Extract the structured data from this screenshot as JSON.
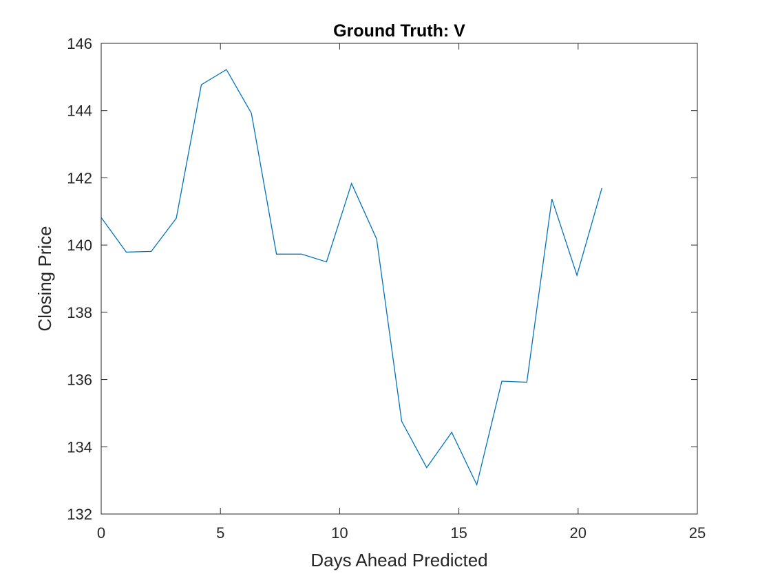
{
  "chart_data": {
    "type": "line",
    "title": "Ground Truth: V",
    "xlabel": "Days Ahead Predicted",
    "ylabel": "Closing Price",
    "xlim": [
      0,
      25
    ],
    "ylim": [
      132,
      146
    ],
    "xticks": [
      0,
      5,
      10,
      15,
      20,
      25
    ],
    "xtick_labels": [
      "0",
      "5",
      "10",
      "15",
      "20",
      "25"
    ],
    "yticks": [
      132,
      134,
      136,
      138,
      140,
      142,
      144,
      146
    ],
    "ytick_labels": [
      "132",
      "134",
      "136",
      "138",
      "140",
      "142",
      "144",
      "146"
    ],
    "grid": false,
    "legend": "none",
    "series": [
      {
        "color": "#0072bd",
        "x": [
          0,
          1.05,
          2.1,
          3.15,
          4.2,
          5.25,
          6.3,
          7.35,
          8.4,
          9.45,
          10.5,
          11.55,
          12.6,
          13.65,
          14.7,
          15.75,
          16.8,
          17.85,
          18.9,
          19.95,
          21.0
        ],
        "y": [
          140.82,
          139.79,
          139.81,
          140.8,
          144.77,
          145.22,
          143.92,
          139.73,
          139.73,
          139.5,
          141.83,
          140.18,
          134.76,
          133.38,
          134.43,
          132.87,
          135.95,
          135.92,
          141.37,
          139.1,
          141.7
        ]
      }
    ]
  }
}
